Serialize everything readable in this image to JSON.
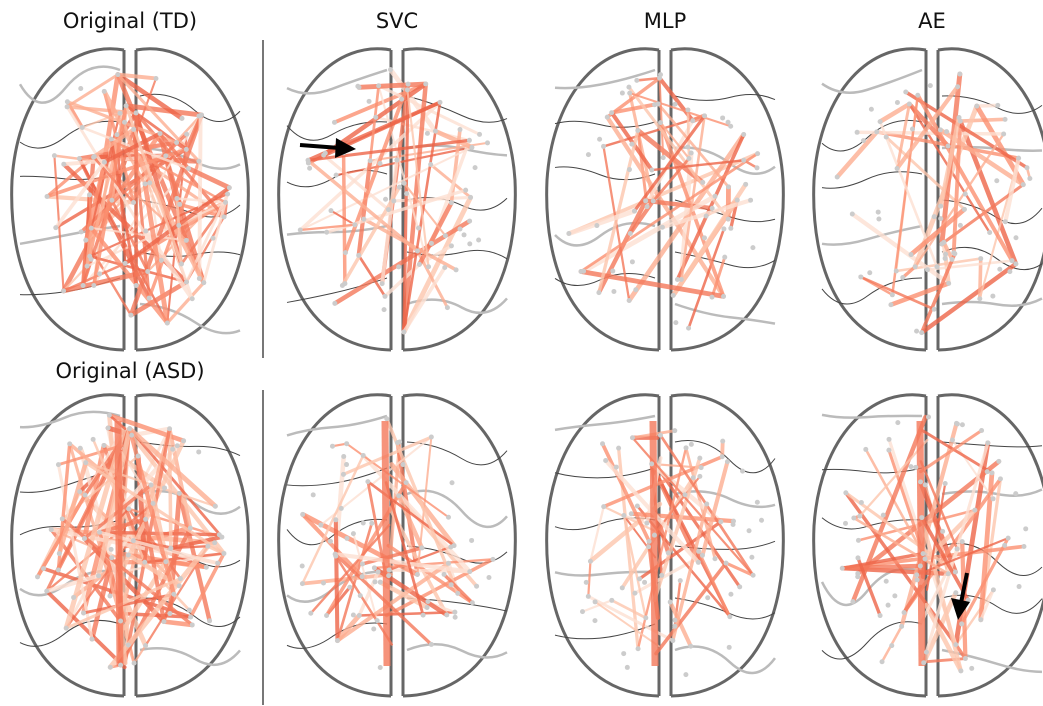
{
  "row_titles": [
    "Original (TD)",
    "Original (ASD)"
  ],
  "column_titles": [
    "SVC",
    "MLP",
    "AE"
  ]
}
